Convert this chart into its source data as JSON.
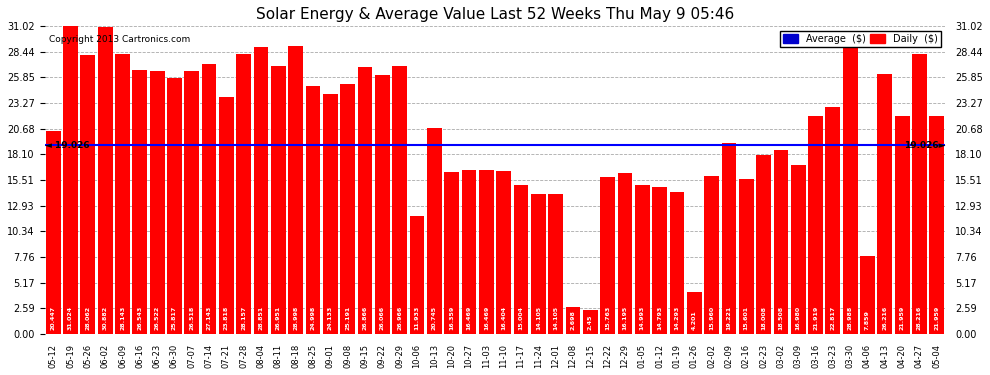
{
  "title": "Solar Energy & Average Value Last 52 Weeks Thu May 9 05:46",
  "copyright": "Copyright 2013 Cartronics.com",
  "average_line": 19.026,
  "average_label": "19.026",
  "bar_color": "#ff0000",
  "avg_line_color": "#0000ff",
  "background_color": "#ffffff",
  "grid_color": "#aaaaaa",
  "ylim": [
    0,
    31.02
  ],
  "yticks": [
    0.0,
    2.59,
    5.17,
    7.76,
    10.34,
    12.93,
    15.51,
    18.1,
    20.68,
    23.27,
    25.85,
    28.44,
    31.02
  ],
  "categories": [
    "05-12",
    "05-19",
    "05-26",
    "06-02",
    "06-09",
    "06-16",
    "06-23",
    "06-30",
    "07-07",
    "07-14",
    "07-21",
    "07-28",
    "08-04",
    "08-11",
    "08-18",
    "08-25",
    "09-01",
    "09-08",
    "09-15",
    "09-22",
    "09-29",
    "10-06",
    "10-13",
    "10-20",
    "10-27",
    "11-03",
    "11-10",
    "11-17",
    "11-24",
    "12-01",
    "12-08",
    "12-15",
    "12-22",
    "12-29",
    "01-05",
    "01-12",
    "01-19",
    "01-26",
    "02-02",
    "02-09",
    "02-16",
    "02-23",
    "03-02",
    "03-09",
    "03-16",
    "03-23",
    "03-30",
    "04-06",
    "04-13",
    "04-20",
    "04-27",
    "05-04"
  ],
  "values": [
    20.447,
    31.024,
    28.062,
    30.882,
    28.143,
    26.543,
    26.522,
    25.817,
    26.518,
    27.143,
    23.818,
    28.157,
    28.851,
    26.951,
    28.998,
    24.998,
    24.133,
    25.191,
    26.866,
    26.066,
    26.966,
    11.933,
    20.745,
    16.359,
    16.469,
    16.469,
    16.404,
    15.004,
    14.105,
    14.105,
    2.698,
    2.45,
    15.763,
    16.195,
    14.993,
    14.793,
    14.293,
    4.201,
    15.96,
    19.221,
    15.601,
    18.008,
    18.508,
    16.98,
    21.919,
    22.817,
    28.988,
    7.859,
    26.216,
    21.959,
    28.216,
    21.959
  ],
  "bar_labels": [
    "20.447",
    "31.024",
    "28.062",
    "30.882",
    "28.143",
    "26.543",
    "26.522",
    "25.817",
    "26.518",
    "27.143",
    "23.818",
    "28.157",
    "28.851",
    "26.951",
    "28.998",
    "24.998",
    "24.133",
    "25.191",
    "26.866",
    "26.066",
    "26.966",
    "11.933",
    "20.745",
    "16.359",
    "16.469",
    "16.469",
    "16.404",
    "15.004",
    "14.105",
    "14.105",
    "2.698",
    "2.45",
    "15.763",
    "16.195",
    "14.993",
    "14.793",
    "14.293",
    "4.201",
    "15.960",
    "19.221",
    "15.601",
    "18.008",
    "18.508",
    "16.980",
    "21.919",
    "22.817",
    "28.988",
    "7.859",
    "26.216",
    "21.959",
    "28.216",
    "21.959"
  ],
  "legend_avg_color": "#0000cd",
  "legend_daily_color": "#ff0000",
  "legend_avg_text": "Average  ($)",
  "legend_daily_text": "Daily  ($)"
}
